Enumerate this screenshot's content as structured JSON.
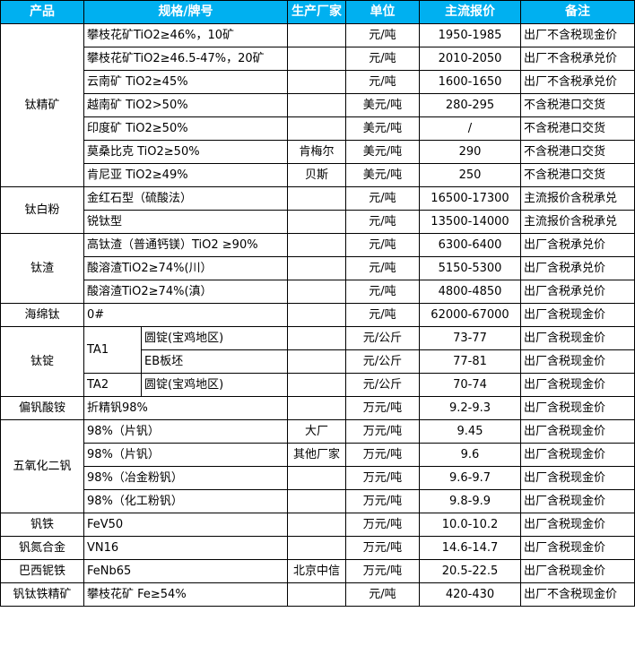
{
  "header": {
    "product": "产品",
    "spec": "规格/牌号",
    "maker": "生产厂家",
    "unit": "单位",
    "price": "主流报价",
    "note": "备注"
  },
  "colors": {
    "header_bg": "#00b0f0",
    "header_text": "#ffffff",
    "border": "#000000"
  },
  "groups": [
    {
      "product": "钛精矿",
      "rows": [
        {
          "spec": "攀枝花矿TiO2≥46%，10矿",
          "maker": "",
          "unit": "元/吨",
          "price": "1950-1985",
          "note": "出厂不含税现金价"
        },
        {
          "spec": "攀枝花矿TiO2≥46.5-47%，20矿",
          "maker": "",
          "unit": "元/吨",
          "price": "2010-2050",
          "note": "出厂不含税承兑价"
        },
        {
          "spec": "云南矿 TiO2≥45%",
          "maker": "",
          "unit": "元/吨",
          "price": "1600-1650",
          "note": "出厂不含税承兑价"
        },
        {
          "spec": "越南矿 TiO2>50%",
          "maker": "",
          "unit": "美元/吨",
          "price": "280-295",
          "note": "不含税港口交货"
        },
        {
          "spec": "印度矿 TiO2≥50%",
          "maker": "",
          "unit": "美元/吨",
          "price": "/",
          "note": "不含税港口交货"
        },
        {
          "spec": "莫桑比克 TiO2≥50%",
          "maker": "肯梅尔",
          "unit": "美元/吨",
          "price": "290",
          "note": "不含税港口交货"
        },
        {
          "spec": "肯尼亚 TiO2≥49%",
          "maker": "贝斯",
          "unit": "美元/吨",
          "price": "250",
          "note": "不含税港口交货"
        }
      ]
    },
    {
      "product": "钛白粉",
      "rows": [
        {
          "spec": "金红石型（硫酸法）",
          "maker": "",
          "unit": "元/吨",
          "price": "16500-17300",
          "note": "主流报价含税承兑"
        },
        {
          "spec": "锐钛型",
          "maker": "",
          "unit": "元/吨",
          "price": "13500-14000",
          "note": "主流报价含税承兑"
        }
      ]
    },
    {
      "product": "钛渣",
      "rows": [
        {
          "spec": "高钛渣（普通钙镁）TiO2 ≥90%",
          "maker": "",
          "unit": "元/吨",
          "price": "6300-6400",
          "note": "出厂含税承兑价"
        },
        {
          "spec": "酸溶渣TiO2≥74%(川）",
          "maker": "",
          "unit": "元/吨",
          "price": "5150-5300",
          "note": "出厂含税承兑价"
        },
        {
          "spec": "酸溶渣TiO2≥74%(滇）",
          "maker": "",
          "unit": "元/吨",
          "price": "4800-4850",
          "note": "出厂含税承兑价"
        }
      ]
    },
    {
      "product": "海绵钛",
      "rows": [
        {
          "spec": "0#",
          "maker": "",
          "unit": "元/吨",
          "price": "62000-67000",
          "note": "出厂含税现金价"
        }
      ]
    },
    {
      "product": "钛锭",
      "rows": [
        {
          "grade": "TA1",
          "sub": "圆锭(宝鸡地区)",
          "maker": "",
          "unit": "元/公斤",
          "price": "73-77",
          "note": "出厂含税现金价"
        },
        {
          "sub": "EB板坯",
          "maker": "",
          "unit": "元/公斤",
          "price": "77-81",
          "note": "出厂含税现金价"
        },
        {
          "grade": "TA2",
          "sub": "圆锭(宝鸡地区)",
          "maker": "",
          "unit": "元/公斤",
          "price": "70-74",
          "note": "出厂含税现金价"
        }
      ]
    },
    {
      "product": "偏钒酸铵",
      "rows": [
        {
          "spec": "折精钒98%",
          "maker": "",
          "unit": "万元/吨",
          "price": "9.2-9.3",
          "note": "出厂含税现金价"
        }
      ]
    },
    {
      "product": "五氧化二钒",
      "rows": [
        {
          "spec": "98%（片钒）",
          "maker": "大厂",
          "unit": "万元/吨",
          "price": "9.45",
          "note": "出厂含税现金价"
        },
        {
          "spec": "98%（片钒）",
          "maker": "其他厂家",
          "unit": "万元/吨",
          "price": "9.6",
          "note": "出厂含税现金价"
        },
        {
          "spec": "98%（冶金粉钒）",
          "maker": "",
          "unit": "万元/吨",
          "price": "9.6-9.7",
          "note": "出厂含税现金价"
        },
        {
          "spec": "98%（化工粉钒）",
          "maker": "",
          "unit": "万元/吨",
          "price": "9.8-9.9",
          "note": "出厂含税现金价"
        }
      ]
    },
    {
      "product": "钒铁",
      "rows": [
        {
          "spec": "FeV50",
          "maker": "",
          "unit": "万元/吨",
          "price": "10.0-10.2",
          "note": "出厂含税现金价"
        }
      ]
    },
    {
      "product": "钒氮合金",
      "rows": [
        {
          "spec": "VN16",
          "maker": "",
          "unit": "万元/吨",
          "price": "14.6-14.7",
          "note": "出厂含税现金价"
        }
      ]
    },
    {
      "product": "巴西铌铁",
      "rows": [
        {
          "spec": "FeNb65",
          "maker": "北京中信",
          "unit": "万元/吨",
          "price": "20.5-22.5",
          "note": "出厂含税现金价"
        }
      ]
    },
    {
      "product": "钒钛铁精矿",
      "rows": [
        {
          "spec": "攀枝花矿 Fe≥54%",
          "maker": "",
          "unit": "元/吨",
          "price": "420-430",
          "note": "出厂不含税现金价"
        }
      ]
    }
  ]
}
